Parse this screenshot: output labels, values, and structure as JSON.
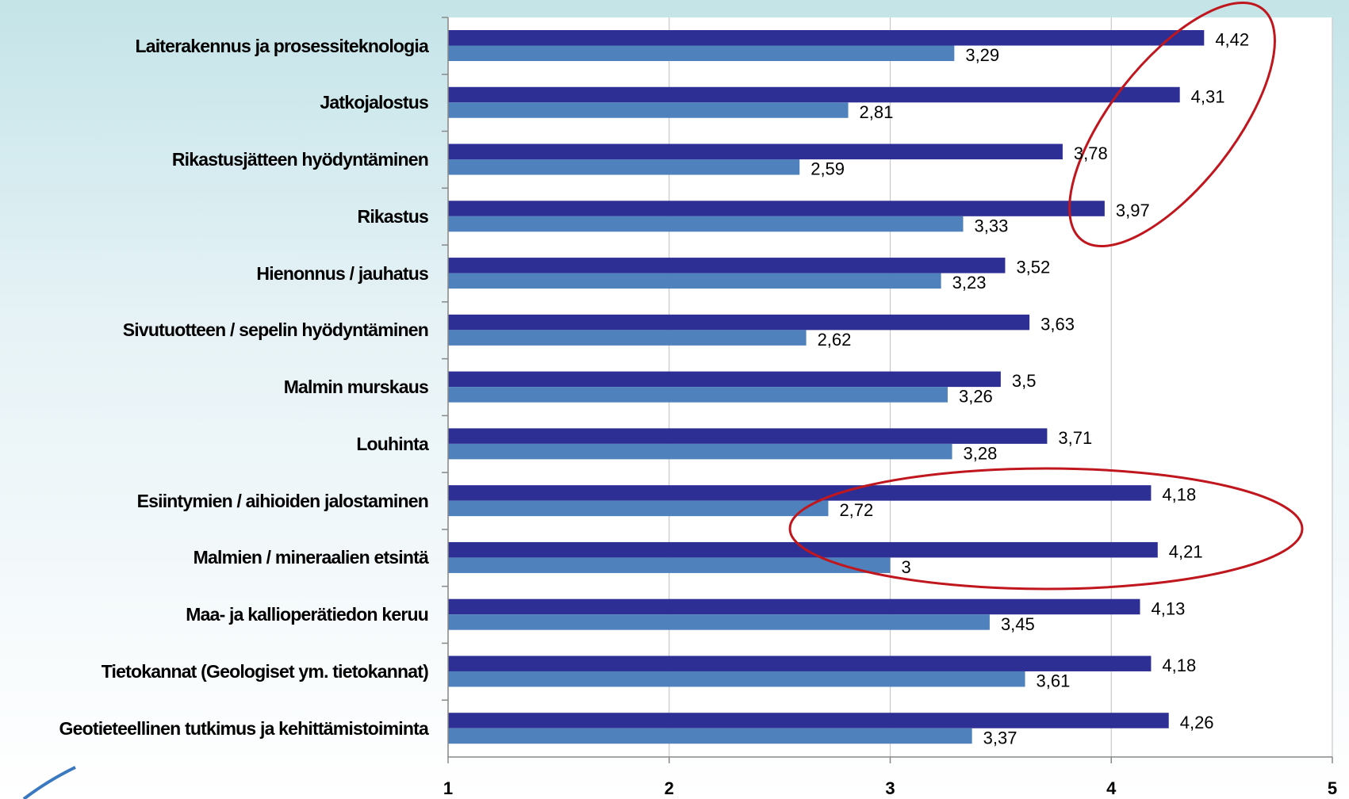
{
  "chart_data": {
    "type": "barh",
    "categories": [
      "Laiterakennus ja prosessiteknologia",
      "Jatkojalostus",
      "Rikastusjätteen hyödyntäminen",
      "Rikastus",
      "Hienonnus / jauhatus",
      "Sivutuotteen / sepelin hyödyntäminen",
      "Malmin murskaus",
      "Louhinta",
      "Esiintymien / aihioiden jalostaminen",
      "Malmien / mineraalien etsintä",
      "Maa- ja kallioperätiedon keruu",
      "Tietokannat (Geologiset ym. tietokannat)",
      "Geotieteellinen tutkimus ja kehittämistoiminta"
    ],
    "series": [
      {
        "color": "#2e2f94",
        "values": [
          4.42,
          4.31,
          3.78,
          3.97,
          3.52,
          3.63,
          3.5,
          3.71,
          4.18,
          4.21,
          4.13,
          4.18,
          4.26
        ],
        "value_labels": [
          "4,42",
          "4,31",
          "3,78",
          "3,97",
          "3,52",
          "3,63",
          "3,5",
          "3,71",
          "4,18",
          "4,21",
          "4,13",
          "4,18",
          "4,26"
        ]
      },
      {
        "color": "#4f81bd",
        "values": [
          3.29,
          2.81,
          2.59,
          3.33,
          3.23,
          2.62,
          3.26,
          3.28,
          2.72,
          3,
          3.45,
          3.61,
          3.37
        ],
        "value_labels": [
          "3,29",
          "2,81",
          "2,59",
          "3,33",
          "3,23",
          "2,62",
          "3,26",
          "3,28",
          "2,72",
          "3",
          "3,45",
          "3,61",
          "3,37"
        ]
      }
    ],
    "xlim": [
      1,
      5
    ],
    "xticks": [
      1,
      2,
      3,
      4,
      5
    ],
    "grid": true
  }
}
